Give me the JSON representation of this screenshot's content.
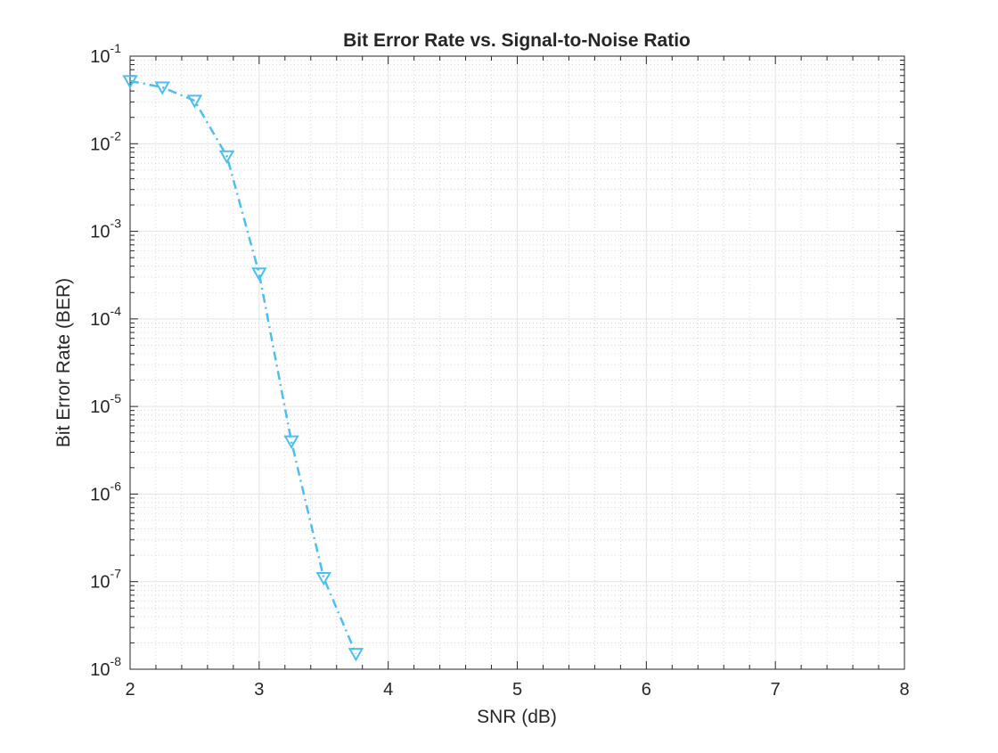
{
  "chart_data": {
    "type": "line",
    "title": "Bit Error Rate vs. Signal-to-Noise Ratio",
    "xlabel": "SNR (dB)",
    "ylabel": "Bit Error Rate (BER)",
    "xlim": [
      2,
      8
    ],
    "ylim": [
      1e-08,
      0.1
    ],
    "yscale": "log",
    "grid": true,
    "minor_grid": true,
    "legend": "none",
    "x_ticks": [
      2,
      3,
      4,
      5,
      6,
      7,
      8
    ],
    "x_tick_labels": [
      "2",
      "3",
      "4",
      "5",
      "6",
      "7",
      "8"
    ],
    "y_ticks": [
      1e-08,
      1e-07,
      1e-06,
      1e-05,
      0.0001,
      0.001,
      0.01,
      0.1
    ],
    "y_tick_labels": [
      {
        "base": "10",
        "exp": "-8"
      },
      {
        "base": "10",
        "exp": "-7"
      },
      {
        "base": "10",
        "exp": "-6"
      },
      {
        "base": "10",
        "exp": "-5"
      },
      {
        "base": "10",
        "exp": "-4"
      },
      {
        "base": "10",
        "exp": "-3"
      },
      {
        "base": "10",
        "exp": "-2"
      },
      {
        "base": "10",
        "exp": "-1"
      }
    ],
    "series": [
      {
        "line_style": "dash-dot",
        "marker": "downward-triangle",
        "color": "#4DBEEE",
        "x": [
          2.0,
          2.25,
          2.5,
          2.75,
          3.0,
          3.25,
          3.5,
          3.75
        ],
        "y": [
          0.052,
          0.044,
          0.031,
          0.0072,
          0.00033,
          4e-06,
          1.1e-07,
          1.5e-08
        ]
      }
    ]
  }
}
